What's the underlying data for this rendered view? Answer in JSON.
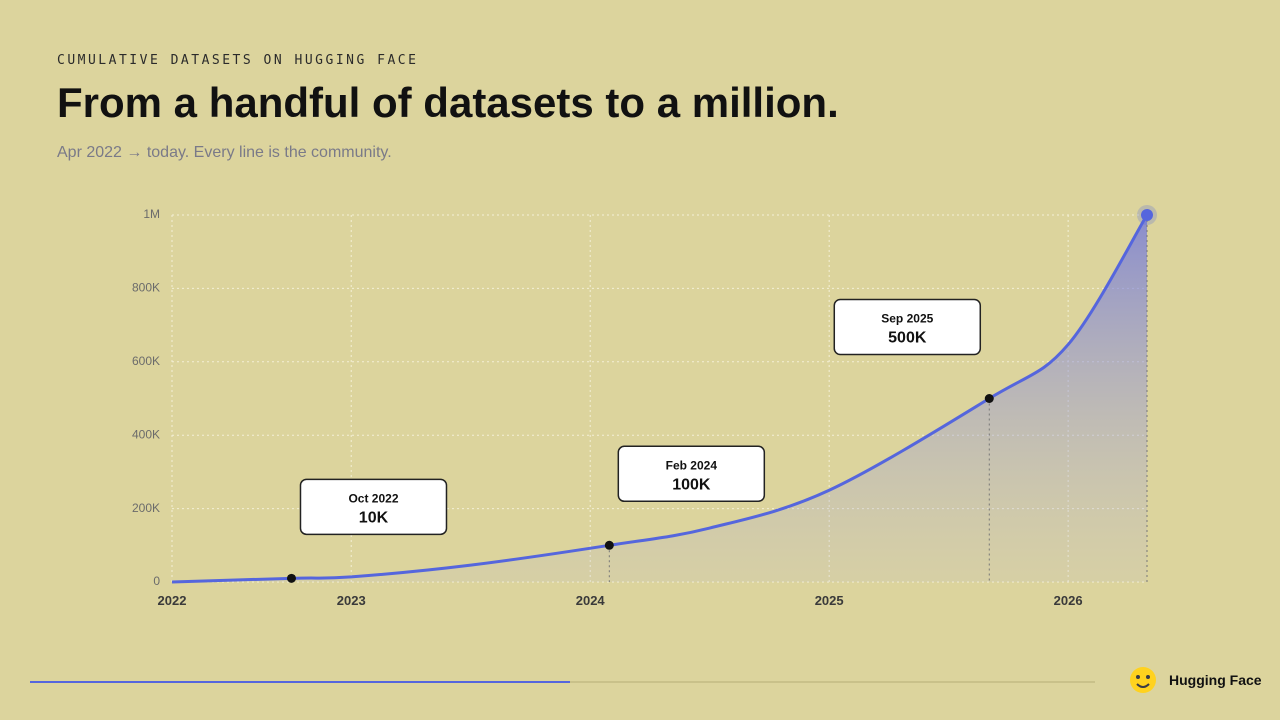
{
  "chart_data": {
    "type": "area",
    "kicker": "CUMULATIVE DATASETS ON HUGGING FACE",
    "title": "From a handful of datasets to a million.",
    "subtitle": "Apr 2022 → today. Every line is the community.",
    "x": [
      2022.25,
      2022.75,
      2023,
      2023.5,
      2024.08,
      2024.5,
      2025,
      2025.67,
      2026,
      2026.33
    ],
    "series": [
      {
        "name": "Datasets",
        "color": "#5566dd",
        "values": [
          0,
          10000,
          14000,
          46000,
          100000,
          147000,
          250000,
          500000,
          647000,
          1000000
        ]
      }
    ],
    "xlim": [
      2022.25,
      2026.33
    ],
    "xticks": [
      {
        "value": 2022.25,
        "label": "2022"
      },
      2023,
      2024,
      2025,
      2026
    ],
    "ylim": [
      0,
      1000000
    ],
    "yticks": [
      0,
      {
        "value": 200000,
        "label": "200K"
      },
      {
        "value": 400000,
        "label": "400K"
      },
      {
        "value": 600000,
        "label": "600K"
      },
      {
        "value": 800000,
        "label": "800K"
      },
      {
        "value": 1000000,
        "label": "1M"
      }
    ],
    "grid": true,
    "annotations": [
      {
        "date": "Oct 2022",
        "label": "10K",
        "x": 2022.75,
        "y": 10000
      },
      {
        "date": "Feb 2024",
        "label": "100K",
        "x": 2024.08,
        "y": 100000
      },
      {
        "date": "Sep 2025",
        "label": "500K",
        "x": 2025.67,
        "y": 500000
      }
    ],
    "brand": "Hugging Face"
  }
}
